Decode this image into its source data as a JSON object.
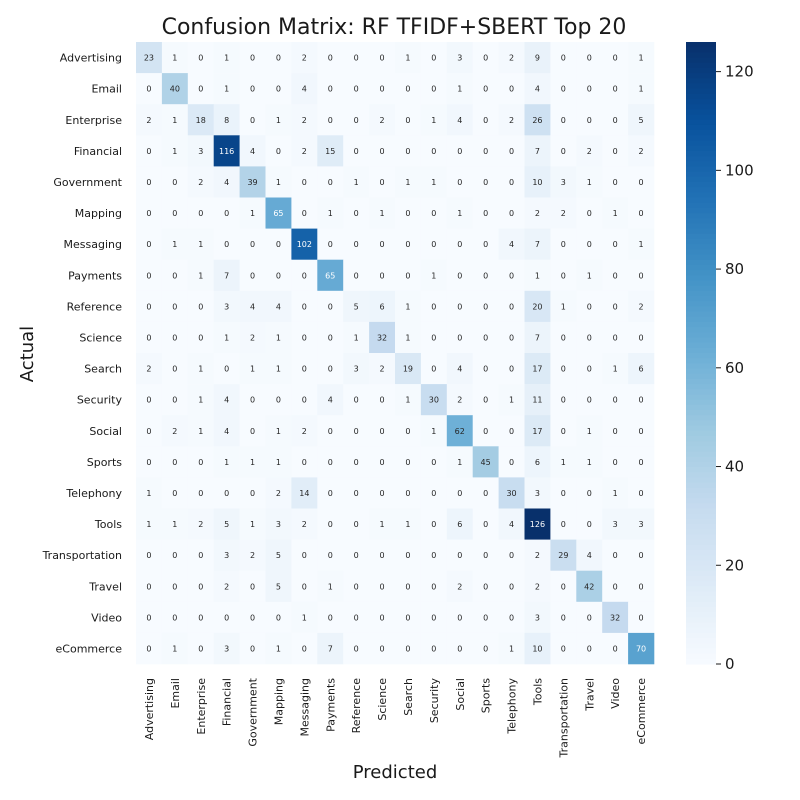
{
  "chart_data": {
    "type": "heatmap",
    "title": "Confusion Matrix: RF TFIDF+SBERT Top 20",
    "xlabel": "Predicted",
    "ylabel": "Actual",
    "rows": [
      "Advertising",
      "Email",
      "Enterprise",
      "Financial",
      "Government",
      "Mapping",
      "Messaging",
      "Payments",
      "Reference",
      "Science",
      "Search",
      "Security",
      "Social",
      "Sports",
      "Telephony",
      "Tools",
      "Transportation",
      "Travel",
      "Video",
      "eCommerce"
    ],
    "columns": [
      "Advertising",
      "Email",
      "Enterprise",
      "Financial",
      "Government",
      "Mapping",
      "Messaging",
      "Payments",
      "Reference",
      "Science",
      "Search",
      "Security",
      "Social",
      "Sports",
      "Telephony",
      "Tools",
      "Transportation",
      "Travel",
      "Video",
      "eCommerce"
    ],
    "values": [
      [
        23,
        1,
        0,
        1,
        0,
        0,
        2,
        0,
        0,
        0,
        1,
        0,
        3,
        0,
        2,
        9,
        0,
        0,
        0,
        1
      ],
      [
        0,
        40,
        0,
        1,
        0,
        0,
        4,
        0,
        0,
        0,
        0,
        0,
        1,
        0,
        0,
        4,
        0,
        0,
        0,
        1
      ],
      [
        2,
        1,
        18,
        8,
        0,
        1,
        2,
        0,
        0,
        2,
        0,
        1,
        4,
        0,
        2,
        26,
        0,
        0,
        0,
        5
      ],
      [
        0,
        1,
        3,
        116,
        4,
        0,
        2,
        15,
        0,
        0,
        0,
        0,
        0,
        0,
        0,
        7,
        0,
        2,
        0,
        2
      ],
      [
        0,
        0,
        2,
        4,
        39,
        1,
        0,
        0,
        1,
        0,
        1,
        1,
        0,
        0,
        0,
        10,
        3,
        1,
        0,
        0
      ],
      [
        0,
        0,
        0,
        0,
        1,
        65,
        0,
        1,
        0,
        1,
        0,
        0,
        1,
        0,
        0,
        2,
        2,
        0,
        1,
        0
      ],
      [
        0,
        1,
        1,
        0,
        0,
        0,
        102,
        0,
        0,
        0,
        0,
        0,
        0,
        0,
        4,
        7,
        0,
        0,
        0,
        1
      ],
      [
        0,
        0,
        1,
        7,
        0,
        0,
        0,
        65,
        0,
        0,
        0,
        1,
        0,
        0,
        0,
        1,
        0,
        1,
        0,
        0
      ],
      [
        0,
        0,
        0,
        3,
        4,
        4,
        0,
        0,
        5,
        6,
        1,
        0,
        0,
        0,
        0,
        20,
        1,
        0,
        0,
        2
      ],
      [
        0,
        0,
        0,
        1,
        2,
        1,
        0,
        0,
        1,
        32,
        1,
        0,
        0,
        0,
        0,
        7,
        0,
        0,
        0,
        0
      ],
      [
        2,
        0,
        1,
        0,
        1,
        1,
        0,
        0,
        3,
        2,
        19,
        0,
        4,
        0,
        0,
        17,
        0,
        0,
        1,
        6
      ],
      [
        0,
        0,
        1,
        4,
        0,
        0,
        0,
        4,
        0,
        0,
        1,
        30,
        2,
        0,
        1,
        11,
        0,
        0,
        0,
        0
      ],
      [
        0,
        2,
        1,
        4,
        0,
        1,
        2,
        0,
        0,
        0,
        0,
        1,
        62,
        0,
        0,
        17,
        0,
        1,
        0,
        0
      ],
      [
        0,
        0,
        0,
        1,
        1,
        1,
        0,
        0,
        0,
        0,
        0,
        0,
        1,
        45,
        0,
        6,
        1,
        1,
        0,
        0
      ],
      [
        1,
        0,
        0,
        0,
        0,
        2,
        14,
        0,
        0,
        0,
        0,
        0,
        0,
        0,
        30,
        3,
        0,
        0,
        1,
        0
      ],
      [
        1,
        1,
        2,
        5,
        1,
        3,
        2,
        0,
        0,
        1,
        1,
        0,
        6,
        0,
        4,
        126,
        0,
        0,
        3,
        3
      ],
      [
        0,
        0,
        0,
        3,
        2,
        5,
        0,
        0,
        0,
        0,
        0,
        0,
        0,
        0,
        0,
        2,
        29,
        4,
        0,
        0
      ],
      [
        0,
        0,
        0,
        2,
        0,
        5,
        0,
        1,
        0,
        0,
        0,
        0,
        2,
        0,
        0,
        2,
        0,
        42,
        0,
        0
      ],
      [
        0,
        0,
        0,
        0,
        0,
        0,
        1,
        0,
        0,
        0,
        0,
        0,
        0,
        0,
        0,
        3,
        0,
        0,
        32,
        0
      ],
      [
        0,
        1,
        0,
        3,
        0,
        1,
        0,
        7,
        0,
        0,
        0,
        0,
        0,
        0,
        1,
        10,
        0,
        0,
        0,
        70
      ]
    ],
    "colorbar": {
      "ticks": [
        0,
        20,
        40,
        60,
        80,
        100,
        120
      ],
      "range": [
        0,
        126
      ],
      "colormap": "Blues"
    },
    "colors": {
      "low": "#f7fbff",
      "high": "#08306b"
    }
  }
}
